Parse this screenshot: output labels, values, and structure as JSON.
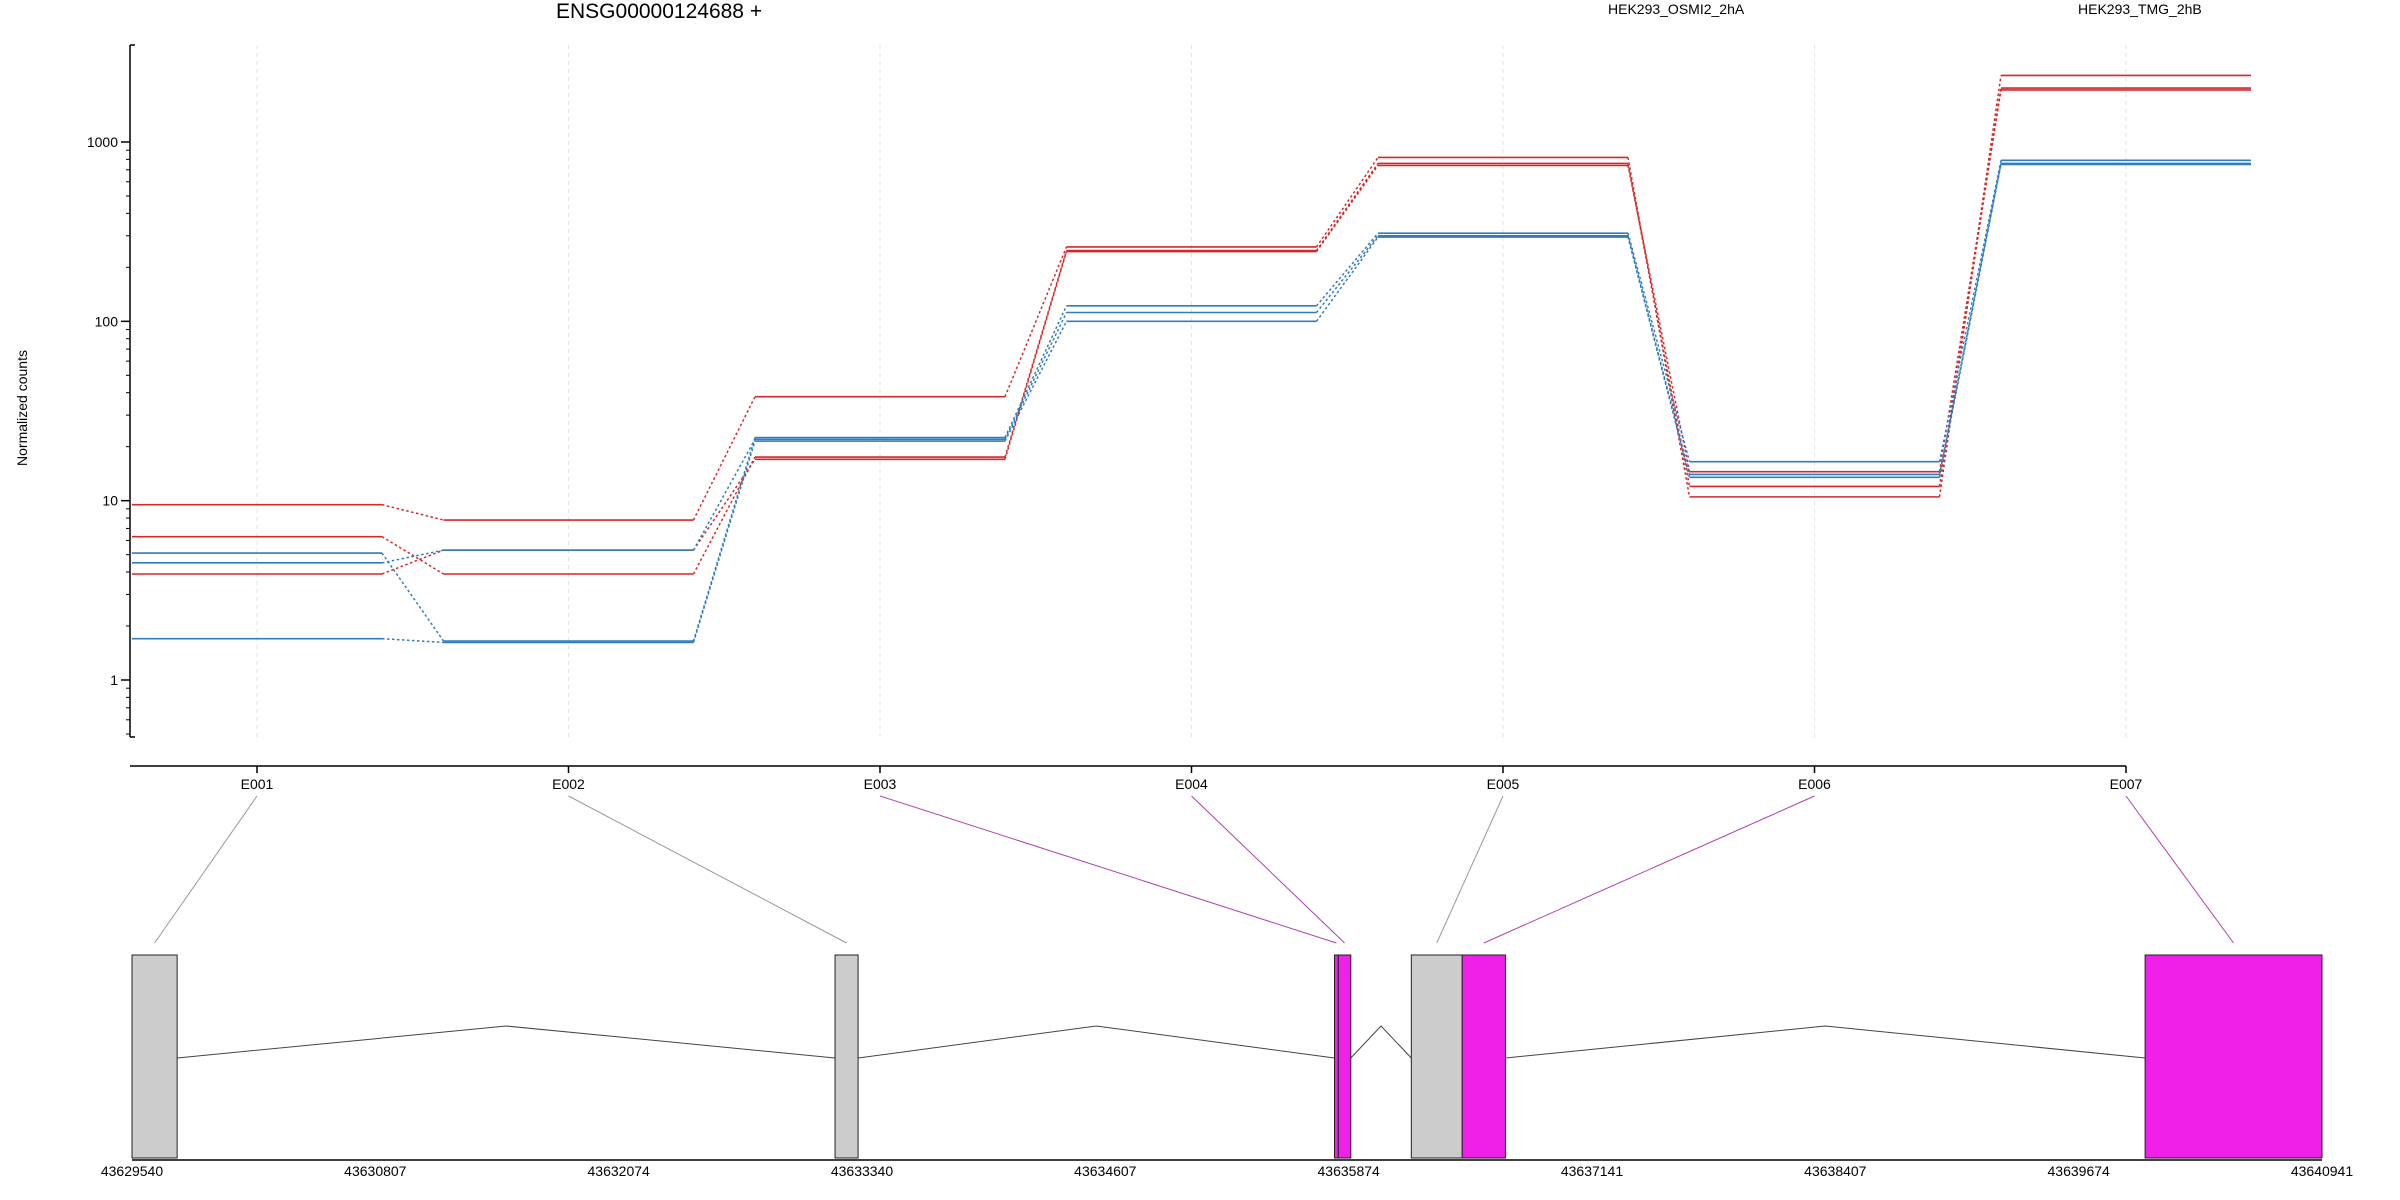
{
  "chart_data": {
    "type": "line",
    "title": "ENSG00000124688 +",
    "ylabel": "Normalized counts",
    "yscale": "log",
    "ylim": [
      0.5,
      3200
    ],
    "yticks": [
      1,
      10,
      100,
      1000
    ],
    "ytick_labels": [
      "1",
      "10",
      "100",
      "1000"
    ],
    "categories": [
      "E001",
      "E002",
      "E003",
      "E004",
      "E005",
      "E006",
      "E007"
    ],
    "legend": [
      {
        "name": "HEK293_OSMI2_2hA",
        "color": "#d62728"
      },
      {
        "name": "HEK293_TMG_2hB",
        "color": "#2f7cbf"
      }
    ],
    "series": [
      {
        "group": "HEK293_OSMI2_2hA",
        "color": "#d62728",
        "values": [
          9.5,
          7.8,
          38,
          260,
          820,
          10.5,
          2350
        ]
      },
      {
        "group": "HEK293_OSMI2_2hA",
        "color": "#d62728",
        "values": [
          6.3,
          3.9,
          17.5,
          248,
          760,
          12,
          2000
        ]
      },
      {
        "group": "HEK293_OSMI2_2hA",
        "color": "#d62728",
        "values": [
          3.9,
          5.3,
          17,
          245,
          740,
          14.5,
          1950
        ]
      },
      {
        "group": "HEK293_TMG_2hB",
        "color": "#2f7cbf",
        "values": [
          5.1,
          1.65,
          22.5,
          122,
          310,
          16.5,
          790
        ]
      },
      {
        "group": "HEK293_TMG_2hB",
        "color": "#2f7cbf",
        "values": [
          4.5,
          5.3,
          22,
          112,
          300,
          14,
          760
        ]
      },
      {
        "group": "HEK293_TMG_2hB",
        "color": "#2f7cbf",
        "values": [
          1.7,
          1.62,
          21.5,
          100,
          295,
          13.5,
          750
        ]
      }
    ],
    "gene_model": {
      "x_range": [
        43629540,
        43640941
      ],
      "ticks": [
        "43629540",
        "43630807",
        "43632074",
        "43633340",
        "43634607",
        "43635874",
        "43637141",
        "43638407",
        "43639674",
        "43640941"
      ],
      "exons": [
        {
          "id": "E001",
          "start": 43629540,
          "end": 43629775,
          "color": "#cccccc",
          "significant": false
        },
        {
          "id": "E002",
          "start": 43633200,
          "end": 43633320,
          "color": "#cccccc",
          "significant": false
        },
        {
          "id": "E003",
          "start": 43635800,
          "end": 43635820,
          "color": "#f020e8",
          "significant": true
        },
        {
          "id": "E004",
          "start": 43635820,
          "end": 43635885,
          "color": "#f020e8",
          "significant": true
        },
        {
          "id": "E005",
          "start": 43636200,
          "end": 43636465,
          "color": "#cccccc",
          "significant": false
        },
        {
          "id": "E006",
          "start": 43636465,
          "end": 43636690,
          "color": "#f020e8",
          "significant": true
        },
        {
          "id": "E007",
          "start": 43640020,
          "end": 43640941,
          "color": "#f020e8",
          "significant": true
        }
      ]
    }
  }
}
